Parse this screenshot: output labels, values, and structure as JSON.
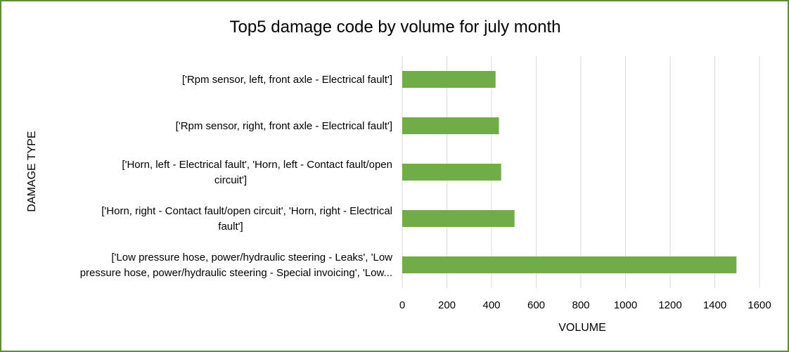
{
  "chart_data": {
    "type": "bar",
    "orientation": "horizontal",
    "title": "Top5 damage code by volume for july month",
    "xlabel": "VOLUME",
    "ylabel": "DAMAGE TYPE",
    "categories": [
      [
        "['Rpm sensor, left, front axle - Electrical fault']"
      ],
      [
        "['Rpm sensor, right, front axle - Electrical fault']"
      ],
      [
        "['Horn, left - Electrical fault', 'Horn, left - Contact fault/open",
        "circuit']"
      ],
      [
        "['Horn, right - Contact fault/open circuit', 'Horn, right - Electrical",
        "fault']"
      ],
      [
        "['Low pressure hose, power/hydraulic steering - Leaks', 'Low",
        "pressure hose, power/hydraulic steering - Special invoicing', 'Low..."
      ]
    ],
    "values": [
      418,
      433,
      443,
      503,
      1497
    ],
    "xlim": [
      0,
      1600
    ],
    "xticks": [
      "0",
      "200",
      "400",
      "600",
      "800",
      "1000",
      "1200",
      "1400",
      "1600"
    ],
    "grid": "vertical",
    "legend": "none",
    "bar_color": "#70ad47",
    "grid_color": "#d9d9d9",
    "border_color": "#5a8f34"
  }
}
